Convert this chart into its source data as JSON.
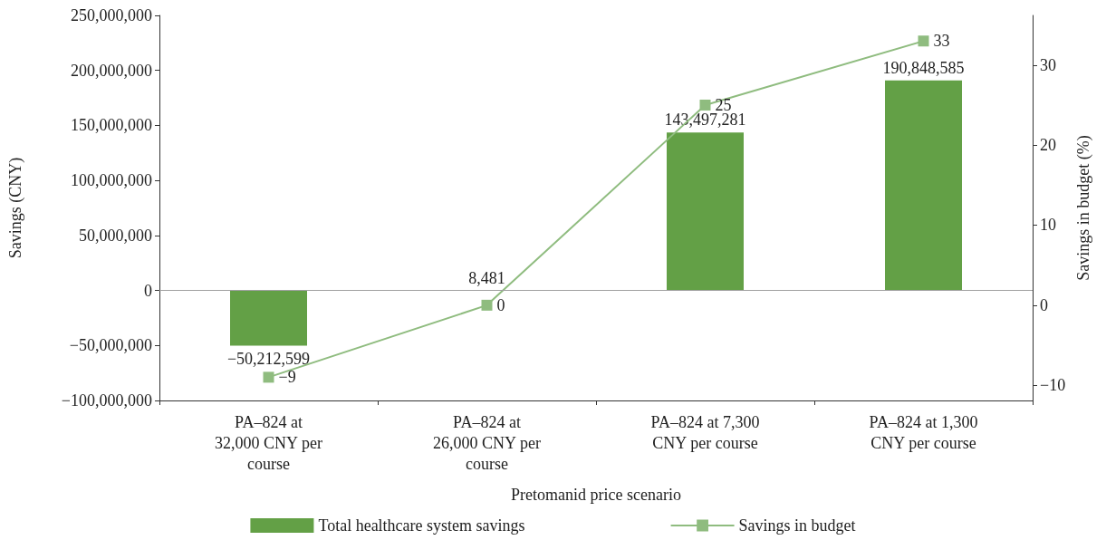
{
  "chart_data": {
    "type": "bar",
    "xlabel": "Pretomanid price scenario",
    "ylabel": "Savings (CNY)",
    "y2label": "Savings in budget (%)",
    "categories": [
      "PA–824 at 32,000 CNY per course",
      "PA–824 at 26,000 CNY per course",
      "PA–824 at 7,300 CNY per course",
      "PA–824 at 1,300 CNY per course"
    ],
    "series": [
      {
        "name": "Total healthcare system savings",
        "color": "#63a046",
        "values": [
          -50212599,
          8481,
          143497281,
          190848585
        ],
        "value_labels": [
          "−50,212,599",
          "8,481",
          "143,497,281",
          "190,848,585"
        ]
      },
      {
        "name": "Savings in budget",
        "type": "line",
        "axis": "y2",
        "color": "#8fbc7f",
        "marker": "square",
        "values": [
          -9,
          0,
          25,
          33
        ],
        "value_labels": [
          "−9",
          "0",
          "25",
          "33"
        ]
      }
    ],
    "ylim": [
      -100000000,
      250000000
    ],
    "yticks": [
      {
        "value": -100000000,
        "label": "−100,000,000"
      },
      {
        "value": -50000000,
        "label": "−50,000,000"
      },
      {
        "value": 0,
        "label": "0"
      },
      {
        "value": 50000000,
        "label": "50,000,000"
      },
      {
        "value": 100000000,
        "label": "100,000,000"
      },
      {
        "value": 150000000,
        "label": "150,000,000"
      },
      {
        "value": 200000000,
        "label": "200,000,000"
      },
      {
        "value": 250000000,
        "label": "250,000,000"
      }
    ],
    "y2lim": [
      -11.9,
      36.2
    ],
    "y2ticks": [
      {
        "value": -10,
        "label": "−10"
      },
      0,
      10,
      20,
      30
    ],
    "ref_lines": [
      {
        "axis": "y",
        "value": 0,
        "color": "#a0a0a0"
      }
    ],
    "legend": "bottom",
    "grid": false
  }
}
